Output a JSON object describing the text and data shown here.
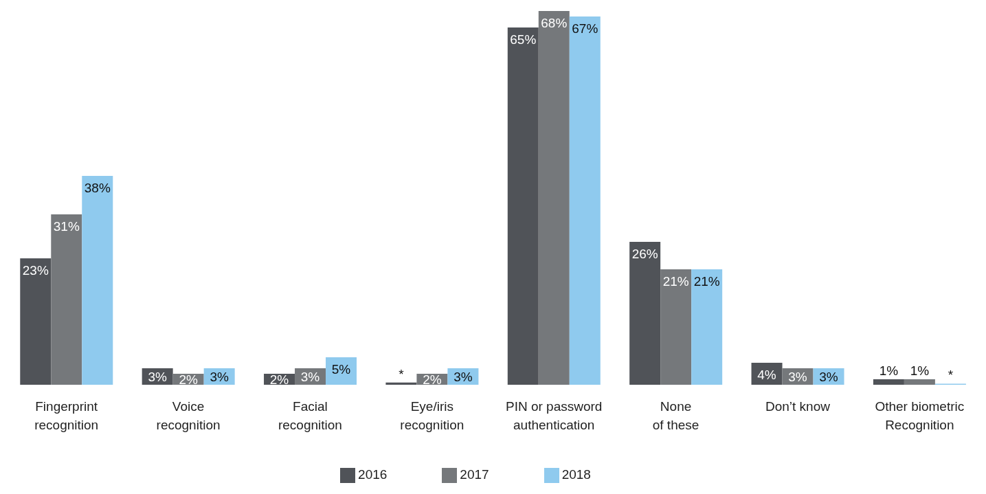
{
  "chart_data": {
    "type": "bar",
    "categories": [
      "Fingerprint\nrecognition",
      "Voice\nrecognition",
      "Facial\nrecognition",
      "Eye/iris\nrecognition",
      "PIN or password\nauthentication",
      "None\nof these",
      "Don’t know",
      "Other biometric\nRecognition"
    ],
    "series": [
      {
        "name": "2016",
        "color": "#505358",
        "values": [
          23,
          3,
          2,
          0.4,
          65,
          26,
          4,
          1
        ],
        "value_labels": [
          "23%",
          "3%",
          "2%",
          "*",
          "65%",
          "26%",
          "4%",
          "1%"
        ]
      },
      {
        "name": "2017",
        "color": "#75787b",
        "values": [
          31,
          2,
          3,
          2,
          68,
          21,
          3,
          1
        ],
        "value_labels": [
          "31%",
          "2%",
          "3%",
          "2%",
          "68%",
          "21%",
          "3%",
          "1%"
        ]
      },
      {
        "name": "2018",
        "color": "#8fcaee",
        "values": [
          38,
          3,
          5,
          3,
          67,
          21,
          3,
          0.2
        ],
        "value_labels": [
          "38%",
          "3%",
          "5%",
          "3%",
          "67%",
          "21%",
          "3%",
          "*"
        ]
      }
    ],
    "legend": "bottom"
  }
}
